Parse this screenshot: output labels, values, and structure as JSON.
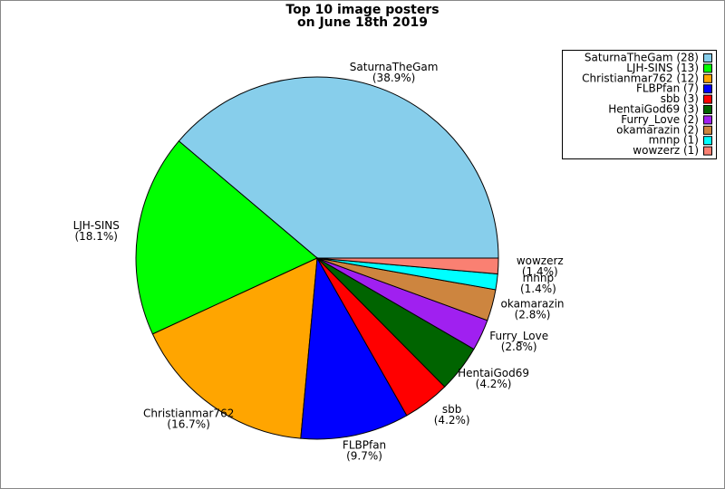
{
  "chart_data": {
    "type": "pie",
    "title": [
      "Top 10 image posters",
      "on June 18th 2019"
    ],
    "categories": [
      "SaturnaTheGam",
      "LJH-SINS",
      "Christianmar762",
      "FLBPfan",
      "sbb",
      "HentaiGod69",
      "Furry_Love",
      "okamarazin",
      "mnnp",
      "wowzerz"
    ],
    "values": [
      38.9,
      18.1,
      16.7,
      9.7,
      4.2,
      4.2,
      2.8,
      2.8,
      1.4,
      1.4
    ],
    "value_labels": [
      "(38.9%)",
      "(18.1%)",
      "(16.7%)",
      "(9.7%)",
      "(4.2%)",
      "(4.2%)",
      "(2.8%)",
      "(2.8%)",
      "(1.4%)",
      "(1.4%)"
    ],
    "colors": [
      "#87ceeb",
      "#00ff00",
      "#ffa500",
      "#0000ff",
      "#ff0000",
      "#006400",
      "#a020f0",
      "#cd853f",
      "#00ffff",
      "#fa8072"
    ],
    "legend_labels": [
      "SaturnaTheGam (28)",
      "LJH-SINS (13)",
      "Christianmar762 (12)",
      "FLBPfan (7)",
      "sbb (3)",
      "HentaiGod69 (3)",
      "Furry_Love (2)",
      "okamarazin (2)",
      "mnnp (1)",
      "wowzerz (1)"
    ],
    "legend": "upper right"
  }
}
